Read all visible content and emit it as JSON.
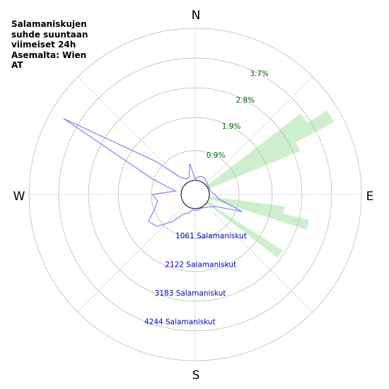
{
  "title_lines": [
    "Salamaniskujen",
    "suhde suuntaan",
    "viimeiset 24h",
    "Asemalta: Wien",
    "AT"
  ],
  "colors": {
    "percent_fill": "#90dc90",
    "percent_label": "#006400",
    "count_line": "#8080ff",
    "count_label": "#0000cc",
    "grid": "#bbbbbb"
  },
  "chart_data": {
    "type": "polar-area",
    "directions": [
      "N",
      "E",
      "S",
      "W"
    ],
    "percent_axis": {
      "ticks": [
        "0.9%",
        "1.9%",
        "2.8%",
        "3.7%"
      ],
      "tick_values": [
        0.9,
        1.9,
        2.8,
        3.7
      ],
      "max": 4.6
    },
    "count_axis": {
      "ticks": [
        "1061 Salamaniskut",
        "2122 Salamaniskut",
        "3183 Salamaniskut",
        "4244 Salamaniskut"
      ],
      "tick_values": [
        1061,
        2122,
        3183,
        4244
      ],
      "max": 5305
    },
    "percent_series": {
      "bins_deg": [
        55,
        60,
        65,
        100,
        105,
        120,
        125
      ],
      "values": [
        3.6,
        4.3,
        3.0,
        2.3,
        3.1,
        0.3,
        2.7
      ]
    },
    "count_series": {
      "bearing_deg": [
        0,
        10,
        20,
        30,
        40,
        50,
        60,
        70,
        80,
        90,
        100,
        110,
        120,
        130,
        140,
        150,
        160,
        170,
        180,
        190,
        200,
        210,
        220,
        230,
        240,
        250,
        260,
        270,
        280,
        290,
        300,
        310,
        320,
        330,
        340,
        350
      ],
      "values": [
        40,
        130,
        180,
        160,
        100,
        70,
        40,
        50,
        60,
        200,
        320,
        1250,
        350,
        180,
        100,
        40,
        30,
        60,
        60,
        60,
        200,
        280,
        730,
        1240,
        1390,
        1020,
        840,
        1000,
        200,
        1100,
        4800,
        1300,
        280,
        120,
        150,
        600
      ]
    }
  }
}
